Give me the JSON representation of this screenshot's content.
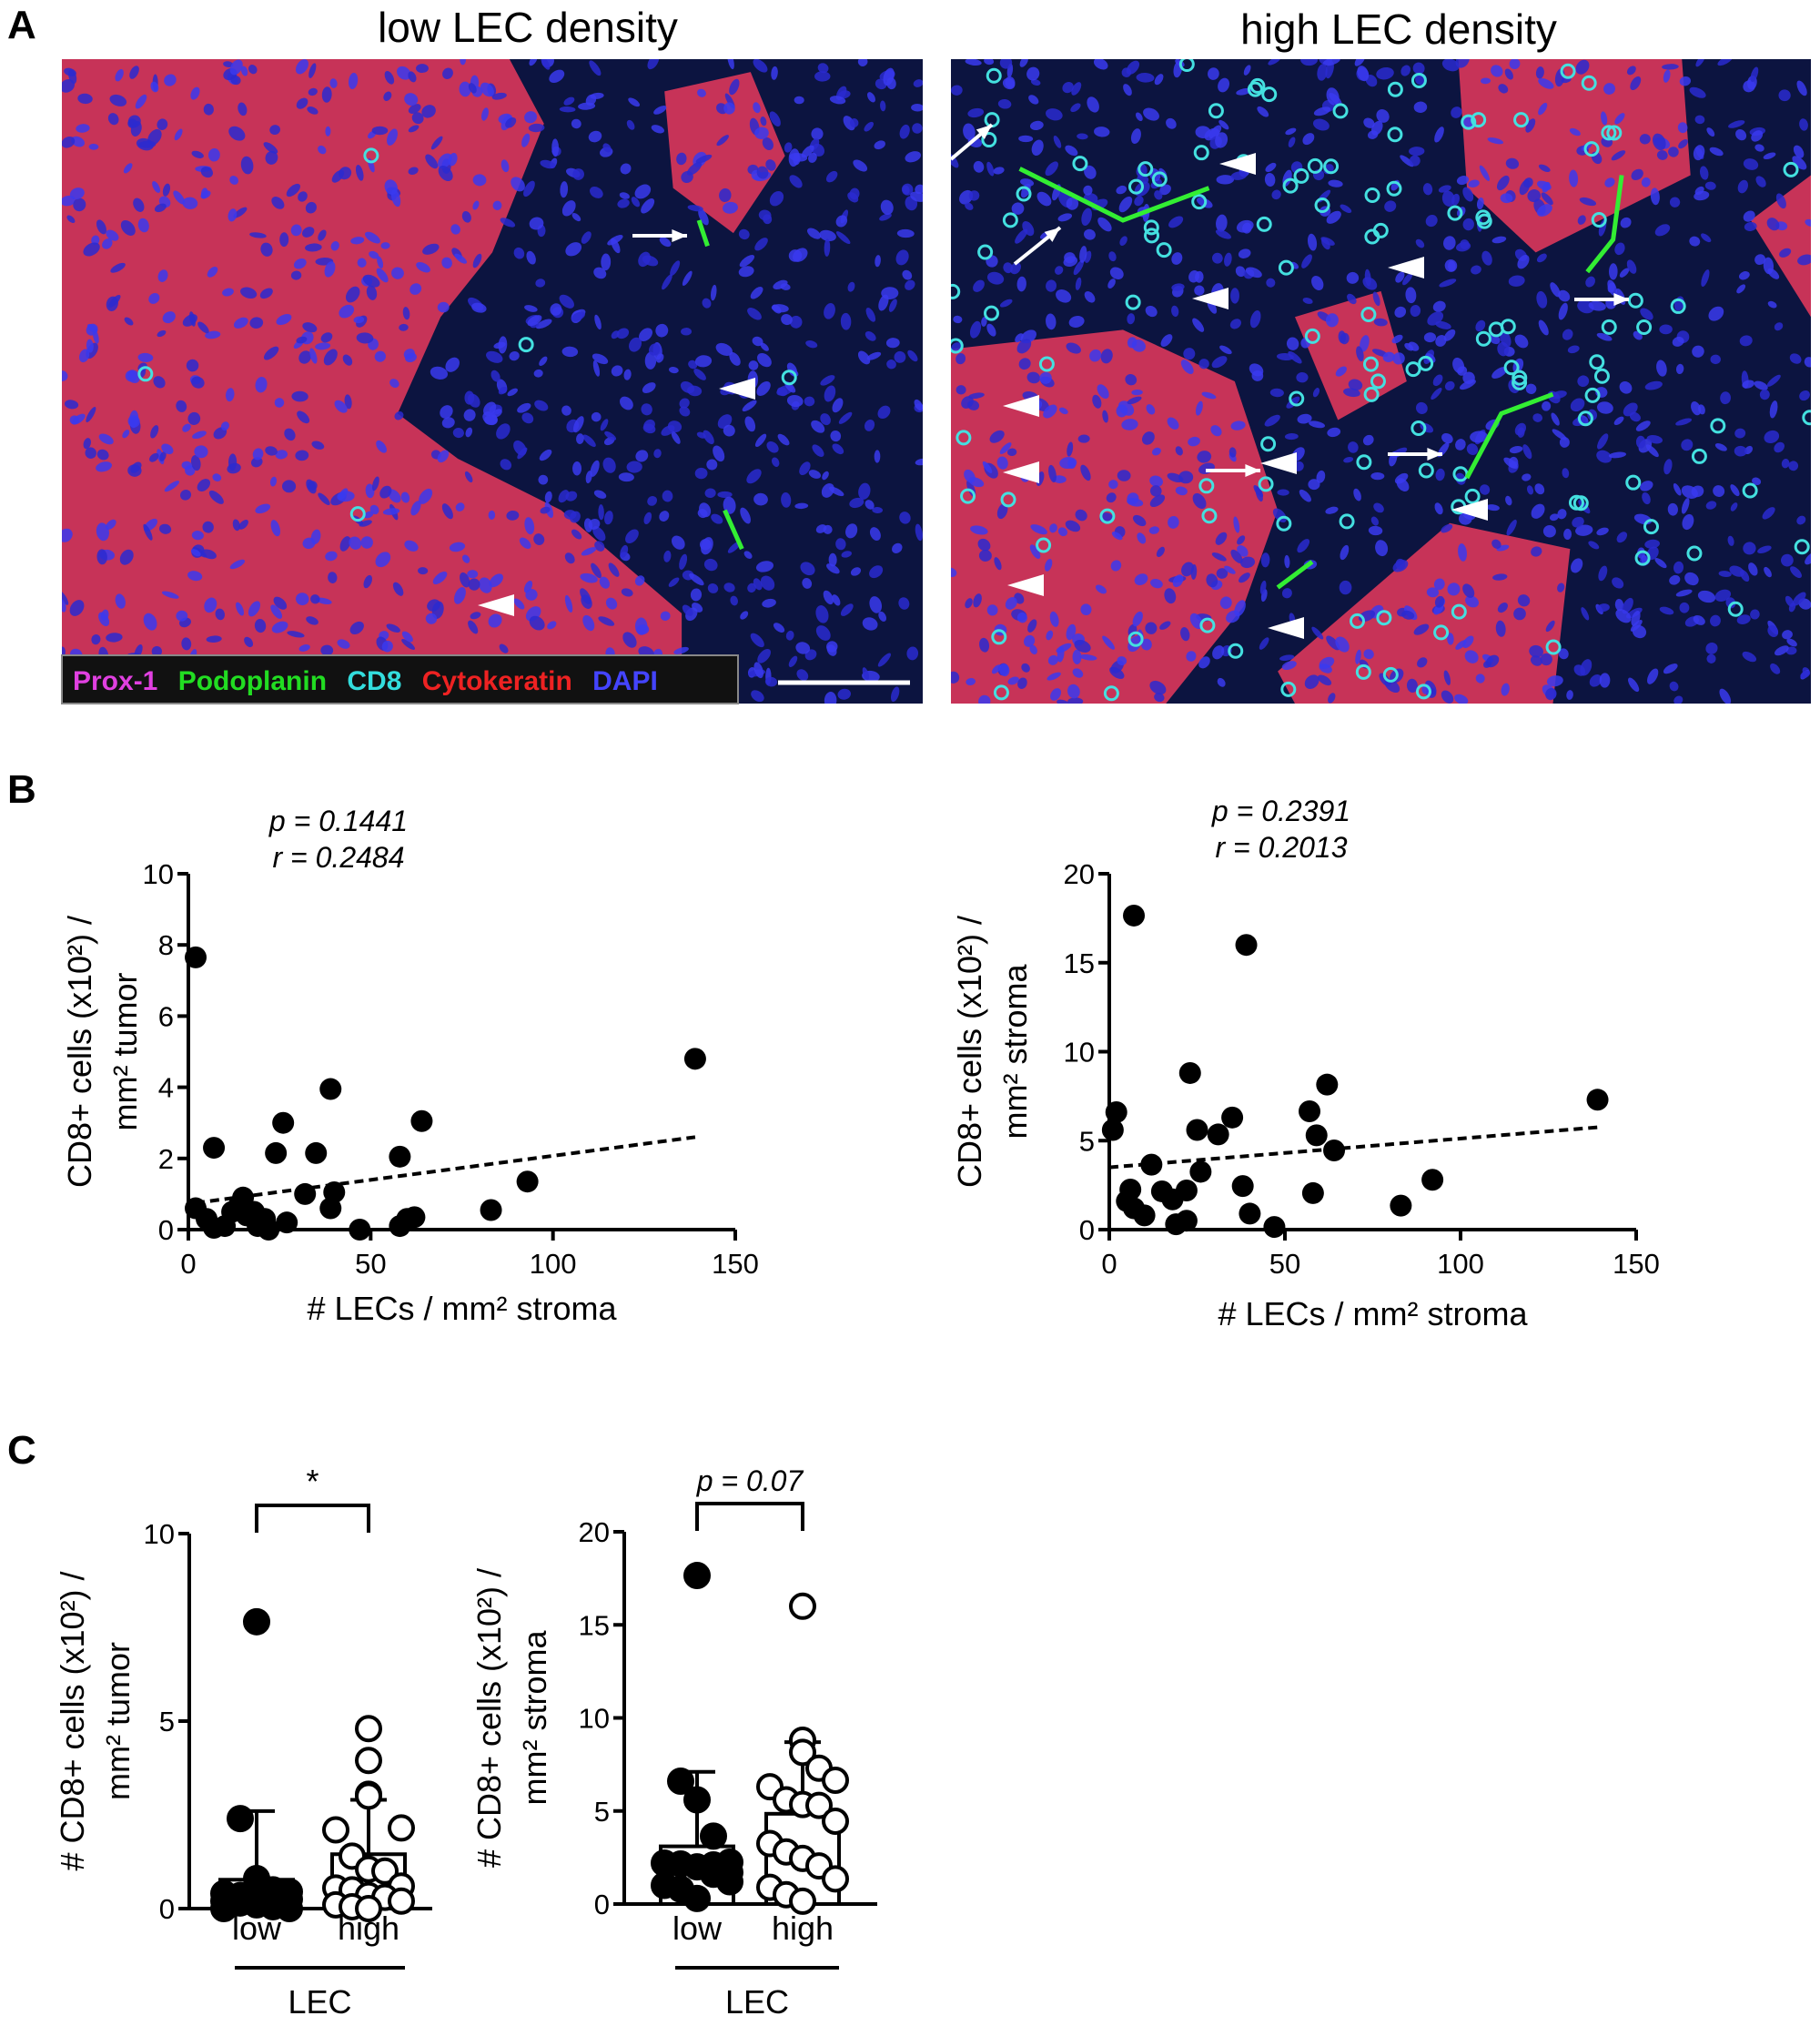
{
  "panel_a": {
    "label": "A",
    "titles": [
      "low LEC density",
      "high LEC density"
    ],
    "legend": [
      {
        "text": "Prox-1",
        "color": "#e040e0"
      },
      {
        "text": "Podoplanin",
        "color": "#22dd22"
      },
      {
        "text": "CD8",
        "color": "#33dddd"
      },
      {
        "text": "Cytokeratin",
        "color": "#ee2222"
      },
      {
        "text": "DAPI",
        "color": "#3333ff"
      }
    ],
    "markers": [
      "arrow-icon",
      "arrowhead-icon",
      "scale-bar"
    ]
  },
  "panel_b": {
    "label": "B"
  },
  "panel_c": {
    "label": "C"
  },
  "chart_data": [
    {
      "type": "scatter",
      "annotations": [
        "p = 0.1441",
        "r = 0.2484"
      ],
      "xlabel": "# LECs / mm² stroma",
      "ylabel": [
        "CD8+ cells (x10²) /",
        "mm² tumor"
      ],
      "xlim": [
        0,
        150
      ],
      "ylim": [
        0,
        10
      ],
      "xticks": [
        0,
        50,
        100,
        150
      ],
      "yticks": [
        0,
        2,
        4,
        6,
        8,
        10
      ],
      "trendline": {
        "x": [
          2,
          139
        ],
        "y": [
          0.75,
          2.6
        ],
        "style": "dashed"
      },
      "points": [
        [
          2,
          7.65
        ],
        [
          2,
          0.6
        ],
        [
          7,
          2.3
        ],
        [
          5,
          0.3
        ],
        [
          7,
          0.05
        ],
        [
          10,
          0.1
        ],
        [
          12,
          0.5
        ],
        [
          14,
          0.7
        ],
        [
          15,
          0.9
        ],
        [
          16,
          0.4
        ],
        [
          18,
          0.5
        ],
        [
          19,
          0.1
        ],
        [
          21,
          0.3
        ],
        [
          22,
          0
        ],
        [
          24,
          2.15
        ],
        [
          26,
          3.0
        ],
        [
          27,
          0.2
        ],
        [
          32,
          1.0
        ],
        [
          35,
          2.15
        ],
        [
          39,
          3.95
        ],
        [
          39,
          0.6
        ],
        [
          40,
          1.05
        ],
        [
          47,
          0
        ],
        [
          58,
          2.05
        ],
        [
          58,
          0.1
        ],
        [
          60,
          0.3
        ],
        [
          62,
          0.35
        ],
        [
          64,
          3.05
        ],
        [
          83,
          0.55
        ],
        [
          93,
          1.35
        ],
        [
          139,
          4.8
        ]
      ]
    },
    {
      "type": "scatter",
      "annotations": [
        "p = 0.2391",
        "r = 0.2013"
      ],
      "xlabel": "# LECs / mm² stroma",
      "ylabel": [
        "CD8+ cells (x10²) /",
        "mm² stroma"
      ],
      "xlim": [
        0,
        150
      ],
      "ylim": [
        0,
        20
      ],
      "xticks": [
        0,
        50,
        100,
        150
      ],
      "yticks": [
        0,
        5,
        10,
        15,
        20
      ],
      "trendline": {
        "x": [
          0,
          139
        ],
        "y": [
          3.5,
          5.75
        ],
        "style": "dashed"
      },
      "points": [
        [
          7,
          17.65
        ],
        [
          39,
          16.0
        ],
        [
          23,
          8.8
        ],
        [
          62,
          8.15
        ],
        [
          139,
          7.3
        ],
        [
          2,
          6.6
        ],
        [
          57,
          6.65
        ],
        [
          1,
          5.6
        ],
        [
          35,
          6.3
        ],
        [
          25,
          5.6
        ],
        [
          31,
          5.35
        ],
        [
          59,
          5.3
        ],
        [
          64,
          4.45
        ],
        [
          12,
          3.65
        ],
        [
          26,
          3.25
        ],
        [
          38,
          2.45
        ],
        [
          58,
          2.05
        ],
        [
          92,
          2.8
        ],
        [
          83,
          1.35
        ],
        [
          6,
          2.25
        ],
        [
          5,
          1.6
        ],
        [
          7,
          1.2
        ],
        [
          10,
          0.8
        ],
        [
          15,
          2.15
        ],
        [
          18,
          1.7
        ],
        [
          22,
          2.2
        ],
        [
          19,
          0.3
        ],
        [
          22,
          0.5
        ],
        [
          40,
          0.9
        ],
        [
          47,
          0.15
        ]
      ]
    },
    {
      "type": "bar",
      "categories": [
        "low",
        "high"
      ],
      "group_label": "LEC",
      "ylabel": [
        "# CD8+ cells (x10²) /",
        "mm² tumor"
      ],
      "ylim": [
        0,
        10
      ],
      "yticks": [
        0,
        5,
        10
      ],
      "significance": "*",
      "series": [
        {
          "category": "low",
          "mean": 0.77,
          "error_upper": 2.6,
          "fill": "filled",
          "points": [
            7.65,
            2.4,
            0.8,
            0.5,
            0.45,
            0.4,
            0.35,
            0.3,
            0.3,
            0.25,
            0.2,
            0.15,
            0.1,
            0.05,
            0,
            0
          ]
        },
        {
          "category": "high",
          "mean": 1.45,
          "error_upper": 2.9,
          "fill": "open",
          "points": [
            4.8,
            3.95,
            3.05,
            3.0,
            2.15,
            2.1,
            1.4,
            1.05,
            1.0,
            0.6,
            0.55,
            0.5,
            0.35,
            0.3,
            0.2,
            0.1,
            0.05,
            0
          ]
        }
      ]
    },
    {
      "type": "bar",
      "categories": [
        "low",
        "high"
      ],
      "group_label": "LEC",
      "ylabel": [
        "# CD8+ cells (x10²) /",
        "mm² stroma"
      ],
      "ylim": [
        0,
        20
      ],
      "yticks": [
        0,
        5,
        10,
        15,
        20
      ],
      "significance": "p = 0.07",
      "series": [
        {
          "category": "low",
          "mean": 3.1,
          "error_upper": 7.1,
          "fill": "filled",
          "points": [
            17.65,
            6.6,
            5.6,
            3.65,
            2.25,
            2.2,
            2.15,
            2.0,
            1.6,
            1.2,
            1.0,
            0.8,
            0.3,
            2.1,
            1.7
          ]
        },
        {
          "category": "high",
          "mean": 4.85,
          "error_upper": 8.7,
          "fill": "open",
          "points": [
            16.0,
            8.8,
            8.15,
            7.3,
            6.65,
            6.3,
            5.6,
            5.35,
            5.3,
            4.45,
            3.25,
            2.8,
            2.45,
            2.05,
            1.35,
            0.9,
            0.5,
            0.15
          ]
        }
      ]
    }
  ]
}
